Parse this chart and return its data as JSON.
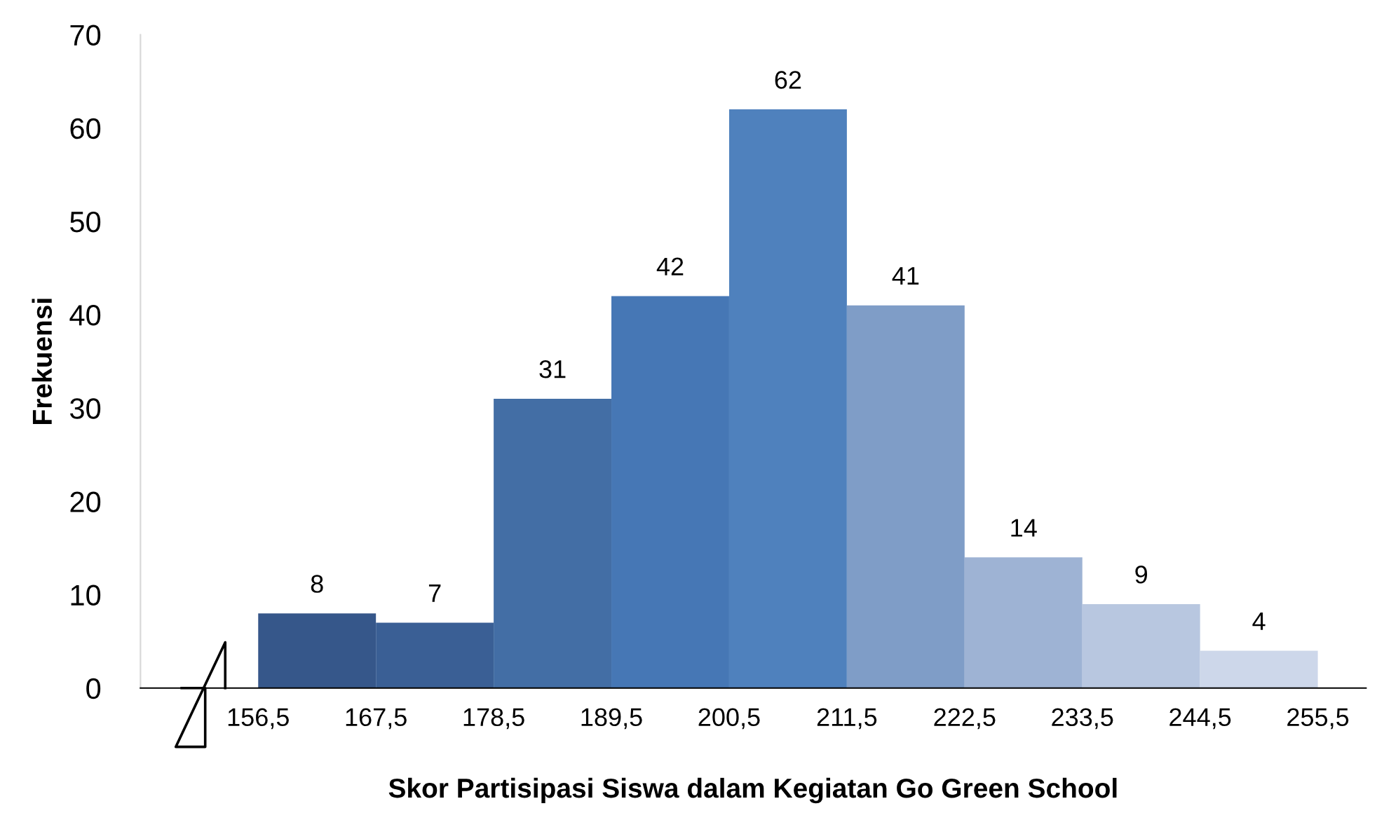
{
  "chart_data": {
    "type": "histogram",
    "xlabel": "Skor Partisipasi Siswa dalam Kegiatan Go Green School",
    "ylabel": "Frekuensi",
    "bins": [
      156.5,
      167.5,
      178.5,
      189.5,
      200.5,
      211.5,
      222.5,
      233.5,
      244.5,
      255.5
    ],
    "values": [
      8,
      7,
      31,
      42,
      62,
      41,
      14,
      9,
      4
    ],
    "colors": [
      "#36578a",
      "#3a5f95",
      "#436ea5",
      "#4677b5",
      "#4f81bd",
      "#7f9dc7",
      "#9eb3d4",
      "#b8c7e0",
      "#cdd7ea"
    ],
    "data_labels": true,
    "xlim": [
      145.5,
      260
    ],
    "xticks": [
      {
        "value": 156.5,
        "label": "156,5"
      },
      {
        "value": 167.5,
        "label": "167,5"
      },
      {
        "value": 178.5,
        "label": "178,5"
      },
      {
        "value": 189.5,
        "label": "189,5"
      },
      {
        "value": 200.5,
        "label": "200,5"
      },
      {
        "value": 211.5,
        "label": "211,5"
      },
      {
        "value": 222.5,
        "label": "222,5"
      },
      {
        "value": 233.5,
        "label": "233,5"
      },
      {
        "value": 244.5,
        "label": "244,5"
      },
      {
        "value": 255.5,
        "label": "255,5"
      }
    ],
    "ylim": [
      0,
      70
    ],
    "yticks": [
      0,
      10,
      20,
      30,
      40,
      50,
      60,
      70
    ],
    "grid": false
  }
}
